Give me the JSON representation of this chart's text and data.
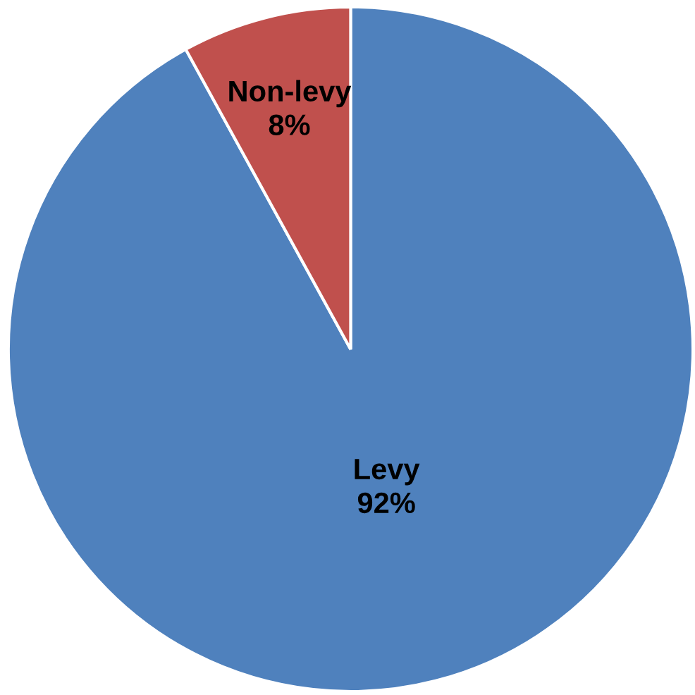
{
  "chart_data": {
    "type": "pie",
    "categories": [
      "Levy",
      "Non-levy"
    ],
    "values": [
      92,
      8
    ],
    "colors": [
      "#4f81bd",
      "#c0504d"
    ],
    "value_labels": [
      "92%",
      "8%"
    ],
    "legend": false
  }
}
